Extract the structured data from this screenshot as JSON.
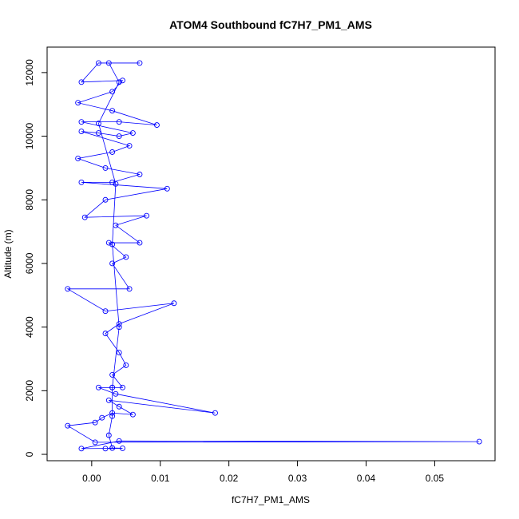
{
  "chart_data": {
    "type": "scatter",
    "title": "ATOM4 Southbound fC7H7_PM1_AMS",
    "xlabel": "fC7H7_PM1_AMS",
    "ylabel": "Altitude (m)",
    "xlim": [
      -0.0065,
      0.0588
    ],
    "ylim": [
      -200,
      12800
    ],
    "x_ticks": [
      0.0,
      0.01,
      0.02,
      0.03,
      0.04,
      0.05
    ],
    "x_tick_labels": [
      "0.00",
      "0.01",
      "0.02",
      "0.03",
      "0.04",
      "0.05"
    ],
    "y_ticks": [
      0,
      2000,
      4000,
      6000,
      8000,
      10000,
      12000
    ],
    "y_tick_labels": [
      "0",
      "2000",
      "4000",
      "6000",
      "8000",
      "10000",
      "12000"
    ],
    "grid": false,
    "connected": true,
    "series": [
      {
        "color": "#0000ff",
        "points": [
          [
            0.002,
            180
          ],
          [
            0.003,
            200
          ],
          [
            0.0045,
            190
          ],
          [
            -0.0015,
            180
          ],
          [
            0.004,
            420
          ],
          [
            0.0565,
            400
          ],
          [
            0.0005,
            380
          ],
          [
            -0.0035,
            900
          ],
          [
            0.0005,
            1000
          ],
          [
            0.0015,
            1150
          ],
          [
            0.003,
            1300
          ],
          [
            0.006,
            1250
          ],
          [
            0.004,
            1500
          ],
          [
            0.0025,
            1700
          ],
          [
            0.018,
            1300
          ],
          [
            0.0035,
            1900
          ],
          [
            0.001,
            2100
          ],
          [
            0.003,
            2100
          ],
          [
            0.0045,
            2100
          ],
          [
            0.003,
            2500
          ],
          [
            0.005,
            2800
          ],
          [
            0.004,
            3200
          ],
          [
            0.002,
            3800
          ],
          [
            0.004,
            4100
          ],
          [
            0.012,
            4750
          ],
          [
            0.002,
            4500
          ],
          [
            -0.0035,
            5200
          ],
          [
            0.0055,
            5200
          ],
          [
            0.003,
            6000
          ],
          [
            0.005,
            6200
          ],
          [
            0.0025,
            6650
          ],
          [
            0.007,
            6650
          ],
          [
            0.0035,
            7200
          ],
          [
            0.008,
            7500
          ],
          [
            -0.001,
            7450
          ],
          [
            0.002,
            8000
          ],
          [
            0.011,
            8350
          ],
          [
            -0.0015,
            8550
          ],
          [
            0.003,
            8550
          ],
          [
            0.007,
            8800
          ],
          [
            0.002,
            9000
          ],
          [
            -0.002,
            9300
          ],
          [
            0.003,
            9500
          ],
          [
            0.0055,
            9700
          ],
          [
            -0.0015,
            10150
          ],
          [
            0.001,
            10100
          ],
          [
            0.004,
            10000
          ],
          [
            0.006,
            10100
          ],
          [
            -0.0015,
            10450
          ],
          [
            0.004,
            10450
          ],
          [
            0.0095,
            10350
          ],
          [
            0.003,
            10800
          ],
          [
            -0.002,
            11050
          ],
          [
            0.003,
            11400
          ],
          [
            0.0045,
            11750
          ],
          [
            -0.0015,
            11700
          ],
          [
            0.001,
            12300
          ],
          [
            0.007,
            12300
          ],
          [
            0.0025,
            12300
          ],
          [
            0.004,
            11700
          ],
          [
            0.001,
            10400
          ],
          [
            0.0035,
            8500
          ],
          [
            0.003,
            6600
          ],
          [
            0.004,
            4000
          ],
          [
            0.003,
            2100
          ],
          [
            0.003,
            1200
          ],
          [
            0.0025,
            600
          ],
          [
            0.003,
            200
          ]
        ]
      }
    ]
  }
}
